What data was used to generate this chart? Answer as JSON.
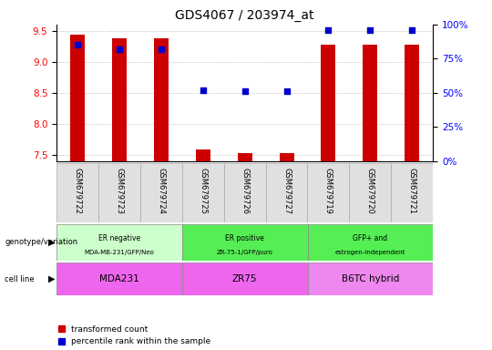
{
  "title": "GDS4067 / 203974_at",
  "samples": [
    "GSM679722",
    "GSM679723",
    "GSM679724",
    "GSM679725",
    "GSM679726",
    "GSM679727",
    "GSM679719",
    "GSM679720",
    "GSM679721"
  ],
  "transformed_count": [
    9.43,
    9.38,
    9.38,
    7.58,
    7.53,
    7.52,
    9.28,
    9.28,
    9.28
  ],
  "percentile_rank": [
    85,
    82,
    82,
    52,
    51,
    51,
    96,
    96,
    96
  ],
  "ylim": [
    7.4,
    9.6
  ],
  "yticks": [
    7.5,
    8.0,
    8.5,
    9.0,
    9.5
  ],
  "right_yticks": [
    0,
    25,
    50,
    75,
    100
  ],
  "geno_groups": [
    {
      "label": "ER negative\nMDA-MB-231/GFP/Neo",
      "start": 0,
      "end": 3,
      "color": "#ccffcc"
    },
    {
      "label": "ER positive\nZR-75-1/GFP/puro",
      "start": 3,
      "end": 6,
      "color": "#55ee55"
    },
    {
      "label": "GFP+ and\nestrogen-independent",
      "start": 6,
      "end": 9,
      "color": "#55ee55"
    }
  ],
  "cell_groups": [
    {
      "label": "MDA231",
      "start": 0,
      "end": 3,
      "color": "#ee66ee"
    },
    {
      "label": "ZR75",
      "start": 3,
      "end": 6,
      "color": "#ee66ee"
    },
    {
      "label": "B6TC hybrid",
      "start": 6,
      "end": 9,
      "color": "#ee88ee"
    }
  ],
  "bar_color": "#cc0000",
  "dot_color": "#0000cc",
  "bar_width": 0.35,
  "dot_size": 20,
  "grid_color": "#aaaaaa",
  "legend_labels": [
    "transformed count",
    "percentile rank within the sample"
  ],
  "figsize": [
    5.4,
    3.84
  ],
  "dpi": 100
}
